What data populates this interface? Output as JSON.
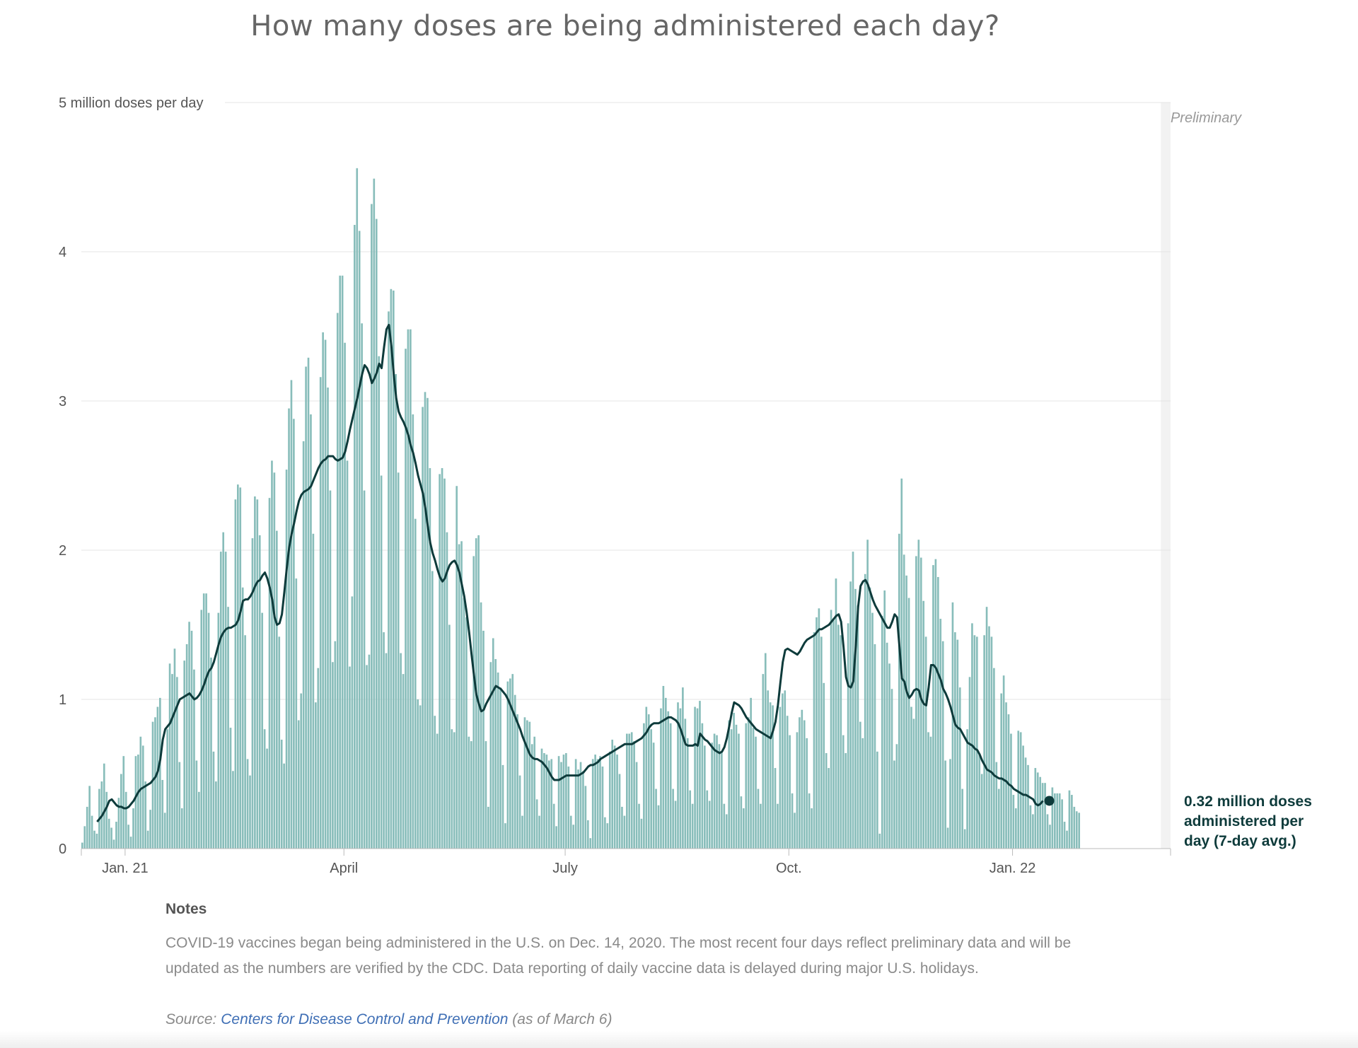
{
  "title": "How many doses are being administered each day?",
  "notes": {
    "heading": "Notes",
    "text": "COVID-19 vaccines began being administered in the U.S. on Dec. 14, 2020. The most recent four days reflect preliminary data and will be updated as the numbers are verified by the CDC. Data reporting of daily vaccine data is delayed during major U.S. holidays."
  },
  "source": {
    "prefix": "Source: ",
    "link_text": "Centers for Disease Control and Prevention",
    "suffix": " (as of March 6)"
  },
  "colors": {
    "bars": "#88bdba",
    "preliminary_bars": "#c4e0de",
    "average_line": "#0e3b3b",
    "preliminary_shade": "#f2f2f2",
    "gridline": "#e4e4e4",
    "axis_text": "#555555",
    "title_text": "#666666"
  },
  "chart_data": {
    "type": "bar",
    "title": "How many doses are being administered each day?",
    "ylabel": "million doses per day",
    "ylim": [
      0,
      5
    ],
    "yticks": [
      0,
      1,
      2,
      3,
      4,
      5
    ],
    "xrange": [
      "2020-12-14",
      "2022-03-06"
    ],
    "xticks": [
      {
        "date": "2021-01-01",
        "label": "Jan. 21"
      },
      {
        "date": "2021-04-01",
        "label": "April"
      },
      {
        "date": "2021-07-01",
        "label": "July"
      },
      {
        "date": "2021-10-01",
        "label": "Oct."
      },
      {
        "date": "2022-01-01",
        "label": "Jan. 22"
      }
    ],
    "grid": true,
    "preliminary": {
      "label": "Preliminary",
      "start": "2022-03-03",
      "end": "2022-03-06"
    },
    "series": [
      {
        "kind": "daily",
        "unit": "million doses",
        "values": [
          0.04,
          0.15,
          0.28,
          0.42,
          0.22,
          0.12,
          0.1,
          0.4,
          0.45,
          0.57,
          0.38,
          0.2,
          0.14,
          0.06,
          0.18,
          0.34,
          0.5,
          0.62,
          0.38,
          0.16,
          0.08,
          0.27,
          0.62,
          0.63,
          0.75,
          0.69,
          0.45,
          0.12,
          0.26,
          0.85,
          0.88,
          0.95,
          1.01,
          0.46,
          0.24,
          0.8,
          1.24,
          1.17,
          1.34,
          1.15,
          0.58,
          0.27,
          1.26,
          1.37,
          1.52,
          1.46,
          1.2,
          0.59,
          0.38,
          1.6,
          1.71,
          1.71,
          1.58,
          1.28,
          0.65,
          0.45,
          1.58,
          1.99,
          2.12,
          1.99,
          1.62,
          0.81,
          0.52,
          2.34,
          2.44,
          2.42,
          1.75,
          1.43,
          0.6,
          0.49,
          2.08,
          2.36,
          2.34,
          2.1,
          1.58,
          0.8,
          0.67,
          2.35,
          2.6,
          2.52,
          2.13,
          1.42,
          0.73,
          0.57,
          2.54,
          2.95,
          3.14,
          2.88,
          1.81,
          0.86,
          1.04,
          2.73,
          3.23,
          3.29,
          2.91,
          2.11,
          0.98,
          1.21,
          3.16,
          3.46,
          3.41,
          3.09,
          2.4,
          1.25,
          1.39,
          3.59,
          3.84,
          3.84,
          3.39,
          2.6,
          1.22,
          1.69,
          4.18,
          4.56,
          4.14,
          3.52,
          2.4,
          1.23,
          1.3,
          4.32,
          4.49,
          4.22,
          3.3,
          2.5,
          1.45,
          1.31,
          3.6,
          3.75,
          3.74,
          3.18,
          2.52,
          1.31,
          1.17,
          3.35,
          3.48,
          3.48,
          2.91,
          2.21,
          1.0,
          0.96,
          2.96,
          3.06,
          3.02,
          2.55,
          1.86,
          0.89,
          0.77,
          2.51,
          2.55,
          2.48,
          2.12,
          1.5,
          0.8,
          0.78,
          2.43,
          2.04,
          2.06,
          1.68,
          1.55,
          0.75,
          0.72,
          1.96,
          2.08,
          2.1,
          1.65,
          1.46,
          0.72,
          0.28,
          1.25,
          1.41,
          1.27,
          1.18,
          1.08,
          0.56,
          0.17,
          1.12,
          1.14,
          1.17,
          1.03,
          0.9,
          0.49,
          0.22,
          0.88,
          0.86,
          0.85,
          0.7,
          0.75,
          0.33,
          0.22,
          0.67,
          0.64,
          0.63,
          0.59,
          0.6,
          0.3,
          0.15,
          0.62,
          0.58,
          0.63,
          0.64,
          0.55,
          0.22,
          0.16,
          0.6,
          0.53,
          0.58,
          0.52,
          0.42,
          0.19,
          0.07,
          0.6,
          0.63,
          0.6,
          0.62,
          0.55,
          0.21,
          0.17,
          0.65,
          0.73,
          0.69,
          0.63,
          0.5,
          0.28,
          0.22,
          0.77,
          0.77,
          0.78,
          0.72,
          0.58,
          0.3,
          0.2,
          0.84,
          0.95,
          0.9,
          0.8,
          0.71,
          0.4,
          0.29,
          0.94,
          1.09,
          1.01,
          0.92,
          0.84,
          0.4,
          0.32,
          0.98,
          0.94,
          1.08,
          0.87,
          0.74,
          0.39,
          0.3,
          0.95,
          0.94,
          0.99,
          0.84,
          0.69,
          0.39,
          0.32,
          0.71,
          0.77,
          0.76,
          0.7,
          0.65,
          0.3,
          0.23,
          0.86,
          0.8,
          0.91,
          0.83,
          0.77,
          0.35,
          0.27,
          0.84,
          0.88,
          1.01,
          0.81,
          0.75,
          0.4,
          0.3,
          1.17,
          1.31,
          1.06,
          0.98,
          0.96,
          0.54,
          0.3,
          0.95,
          1.04,
          1.06,
          0.89,
          0.76,
          0.37,
          0.24,
          0.78,
          0.88,
          0.93,
          0.86,
          0.74,
          0.37,
          0.27,
          1.45,
          1.55,
          1.61,
          1.42,
          1.11,
          0.64,
          0.54,
          1.6,
          1.53,
          1.81,
          1.5,
          1.43,
          0.76,
          0.64,
          1.51,
          1.79,
          1.99,
          1.74,
          1.63,
          0.85,
          0.74,
          1.84,
          2.07,
          1.75,
          1.58,
          1.37,
          0.65,
          0.1,
          1.56,
          1.73,
          1.38,
          1.24,
          1.07,
          0.59,
          0.7,
          2.11,
          2.48,
          1.97,
          1.83,
          1.68,
          0.95,
          0.87,
          1.96,
          2.07,
          1.95,
          1.66,
          1.42,
          0.78,
          0.75,
          1.9,
          1.94,
          1.82,
          1.54,
          1.39,
          0.59,
          0.14,
          0.6,
          1.65,
          1.45,
          1.4,
          1.08,
          0.4,
          0.13,
          0.8,
          1.15,
          1.51,
          1.43,
          1.42,
          0.64,
          0.5,
          1.43,
          1.62,
          1.49,
          1.42,
          1.21,
          0.58,
          0.4,
          1.04,
          1.16,
          0.98,
          0.9,
          0.77,
          0.36,
          0.27,
          0.79,
          0.78,
          0.69,
          0.61,
          0.56,
          0.29,
          0.23,
          0.54,
          0.51,
          0.48,
          0.44,
          0.44,
          0.23,
          0.16,
          0.41,
          0.37,
          0.37,
          0.37,
          0.33,
          0.18,
          0.12,
          0.39,
          0.36,
          0.28,
          0.25,
          0.24
        ]
      },
      {
        "kind": "7-day average",
        "unit": "million doses",
        "start": "2020-12-20",
        "values": [
          0.18,
          0.2,
          0.22,
          0.25,
          0.28,
          0.32,
          0.33,
          0.31,
          0.29,
          0.28,
          0.28,
          0.27,
          0.27,
          0.28,
          0.3,
          0.32,
          0.35,
          0.38,
          0.4,
          0.41,
          0.42,
          0.43,
          0.44,
          0.46,
          0.48,
          0.52,
          0.6,
          0.73,
          0.8,
          0.82,
          0.84,
          0.88,
          0.92,
          0.96,
          1.0,
          1.01,
          1.02,
          1.03,
          1.04,
          1.02,
          1.0,
          1.01,
          1.03,
          1.06,
          1.1,
          1.15,
          1.19,
          1.21,
          1.25,
          1.31,
          1.37,
          1.42,
          1.45,
          1.47,
          1.48,
          1.48,
          1.49,
          1.5,
          1.53,
          1.59,
          1.66,
          1.67,
          1.67,
          1.69,
          1.72,
          1.76,
          1.79,
          1.8,
          1.83,
          1.85,
          1.81,
          1.75,
          1.67,
          1.55,
          1.5,
          1.51,
          1.57,
          1.72,
          1.88,
          2.02,
          2.11,
          2.18,
          2.26,
          2.33,
          2.37,
          2.39,
          2.4,
          2.41,
          2.43,
          2.47,
          2.51,
          2.55,
          2.58,
          2.6,
          2.61,
          2.63,
          2.63,
          2.63,
          2.61,
          2.6,
          2.61,
          2.62,
          2.66,
          2.73,
          2.81,
          2.88,
          2.95,
          3.02,
          3.1,
          3.18,
          3.24,
          3.22,
          3.18,
          3.12,
          3.15,
          3.19,
          3.25,
          3.22,
          3.36,
          3.48,
          3.51,
          3.37,
          3.18,
          3.02,
          2.93,
          2.89,
          2.86,
          2.82,
          2.77,
          2.7,
          2.65,
          2.58,
          2.5,
          2.44,
          2.38,
          2.28,
          2.16,
          2.05,
          1.98,
          1.93,
          1.87,
          1.82,
          1.79,
          1.81,
          1.86,
          1.9,
          1.92,
          1.93,
          1.9,
          1.85,
          1.77,
          1.69,
          1.58,
          1.45,
          1.3,
          1.16,
          1.03,
          0.97,
          0.92,
          0.93,
          0.97,
          1.0,
          1.03,
          1.06,
          1.09,
          1.08,
          1.07,
          1.05,
          1.03,
          1.0,
          0.96,
          0.92,
          0.88,
          0.84,
          0.8,
          0.75,
          0.71,
          0.67,
          0.63,
          0.61,
          0.6,
          0.6,
          0.59,
          0.58,
          0.56,
          0.54,
          0.51,
          0.48,
          0.46,
          0.46,
          0.46,
          0.47,
          0.48,
          0.49,
          0.49,
          0.49,
          0.49,
          0.49,
          0.49,
          0.5,
          0.51,
          0.53,
          0.55,
          0.56,
          0.56,
          0.57,
          0.58,
          0.6,
          0.61,
          0.62,
          0.63,
          0.64,
          0.65,
          0.66,
          0.67,
          0.68,
          0.69,
          0.7,
          0.7,
          0.7,
          0.7,
          0.71,
          0.72,
          0.73,
          0.74,
          0.76,
          0.78,
          0.81,
          0.83,
          0.84,
          0.84,
          0.84,
          0.85,
          0.86,
          0.87,
          0.88,
          0.88,
          0.87,
          0.86,
          0.84,
          0.8,
          0.75,
          0.7,
          0.69,
          0.69,
          0.69,
          0.7,
          0.69,
          0.77,
          0.75,
          0.73,
          0.72,
          0.7,
          0.68,
          0.66,
          0.65,
          0.64,
          0.65,
          0.68,
          0.74,
          0.82,
          0.91,
          0.98,
          0.97,
          0.96,
          0.94,
          0.91,
          0.88,
          0.86,
          0.84,
          0.82,
          0.8,
          0.79,
          0.78,
          0.77,
          0.76,
          0.75,
          0.74,
          0.79,
          0.85,
          0.96,
          1.11,
          1.25,
          1.33,
          1.34,
          1.33,
          1.32,
          1.31,
          1.3,
          1.32,
          1.35,
          1.38,
          1.4,
          1.41,
          1.42,
          1.43,
          1.45,
          1.47,
          1.47,
          1.48,
          1.49,
          1.5,
          1.52,
          1.54,
          1.56,
          1.57,
          1.52,
          1.35,
          1.15,
          1.09,
          1.08,
          1.12,
          1.35,
          1.62,
          1.76,
          1.79,
          1.8,
          1.77,
          1.72,
          1.67,
          1.63,
          1.6,
          1.57,
          1.54,
          1.51,
          1.48,
          1.48,
          1.52,
          1.57,
          1.55,
          1.35,
          1.14,
          1.12,
          1.05,
          1.01,
          1.03,
          1.06,
          1.07,
          1.06,
          1.0,
          0.97,
          0.96,
          1.08,
          1.23,
          1.23,
          1.21,
          1.17,
          1.13,
          1.07,
          1.04,
          1.0,
          0.95,
          0.89,
          0.83,
          0.81,
          0.8,
          0.77,
          0.74,
          0.71,
          0.7,
          0.69,
          0.67,
          0.66,
          0.63,
          0.59,
          0.56,
          0.53,
          0.52,
          0.51,
          0.49,
          0.48,
          0.47,
          0.47,
          0.46,
          0.45,
          0.43,
          0.42,
          0.4,
          0.39,
          0.38,
          0.37,
          0.36,
          0.36,
          0.35,
          0.34,
          0.33,
          0.3,
          0.29,
          0.3,
          0.32
        ]
      }
    ],
    "annotation": {
      "lines": [
        "0.32 million doses",
        "administered per",
        "day (7-day avg.)"
      ],
      "value": 0.32
    }
  }
}
